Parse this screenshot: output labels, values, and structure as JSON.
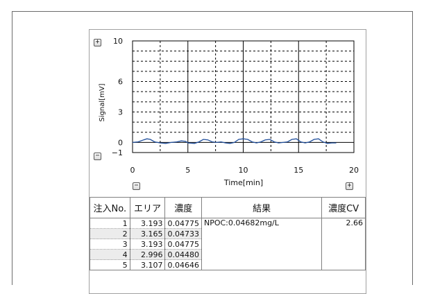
{
  "chart_data": {
    "type": "line",
    "xlabel": "Time[min]",
    "ylabel": "Signal[mV]",
    "xlim": [
      0,
      20
    ],
    "ylim": [
      -1,
      10
    ],
    "x_ticks": [
      "0",
      "5",
      "10",
      "15",
      "20"
    ],
    "y_ticks": [
      "10",
      "6",
      "3",
      "0",
      "-1"
    ],
    "grid": true,
    "series": [
      {
        "color": "#1f4e9c",
        "x": [
          0,
          0.5,
          1.0,
          1.3,
          1.6,
          2.0,
          2.5,
          3.0,
          3.5,
          4.0,
          4.4,
          4.8,
          5.0,
          5.6,
          6.0,
          6.4,
          6.8,
          7.2,
          7.6,
          8.0,
          8.4,
          8.8,
          9.2,
          9.6,
          10.0,
          10.4,
          10.8,
          11.2,
          11.6,
          12.0,
          12.4,
          12.8,
          13.2,
          13.6,
          14.0,
          14.4,
          14.8,
          15.2,
          15.6,
          16.0,
          16.4,
          16.8,
          17.2,
          17.6,
          18.0,
          18.4
        ],
        "y": [
          0.0,
          0.05,
          0.25,
          0.35,
          0.3,
          0.05,
          -0.05,
          -0.1,
          0.0,
          0.05,
          0.15,
          0.1,
          -0.05,
          -0.1,
          0.05,
          0.3,
          0.25,
          0.05,
          0.0,
          0.05,
          -0.05,
          -0.1,
          0.0,
          0.3,
          0.35,
          0.3,
          0.05,
          -0.05,
          0.05,
          0.25,
          0.3,
          0.05,
          -0.05,
          0.0,
          0.05,
          0.3,
          0.35,
          0.05,
          -0.05,
          0.05,
          0.3,
          0.35,
          0.05,
          -0.1,
          -0.05,
          -0.05
        ]
      }
    ]
  },
  "zoom_buttons": {
    "y_plus": "+",
    "y_minus": "−",
    "x_minus": "−",
    "x_plus": "+"
  },
  "table": {
    "headers": [
      "注入No.",
      "エリア",
      "濃度",
      "結果",
      "濃度CV"
    ],
    "rows": [
      {
        "no": "1",
        "area": "3.193",
        "conc": "0.04775"
      },
      {
        "no": "2",
        "area": "3.165",
        "conc": "0.04733"
      },
      {
        "no": "3",
        "area": "3.193",
        "conc": "0.04775"
      },
      {
        "no": "4",
        "area": "2.996",
        "conc": "0.04480"
      },
      {
        "no": "5",
        "area": "3.107",
        "conc": "0.04646"
      }
    ],
    "result": "NPOC:0.04682mg/L",
    "cv": "2.66"
  }
}
